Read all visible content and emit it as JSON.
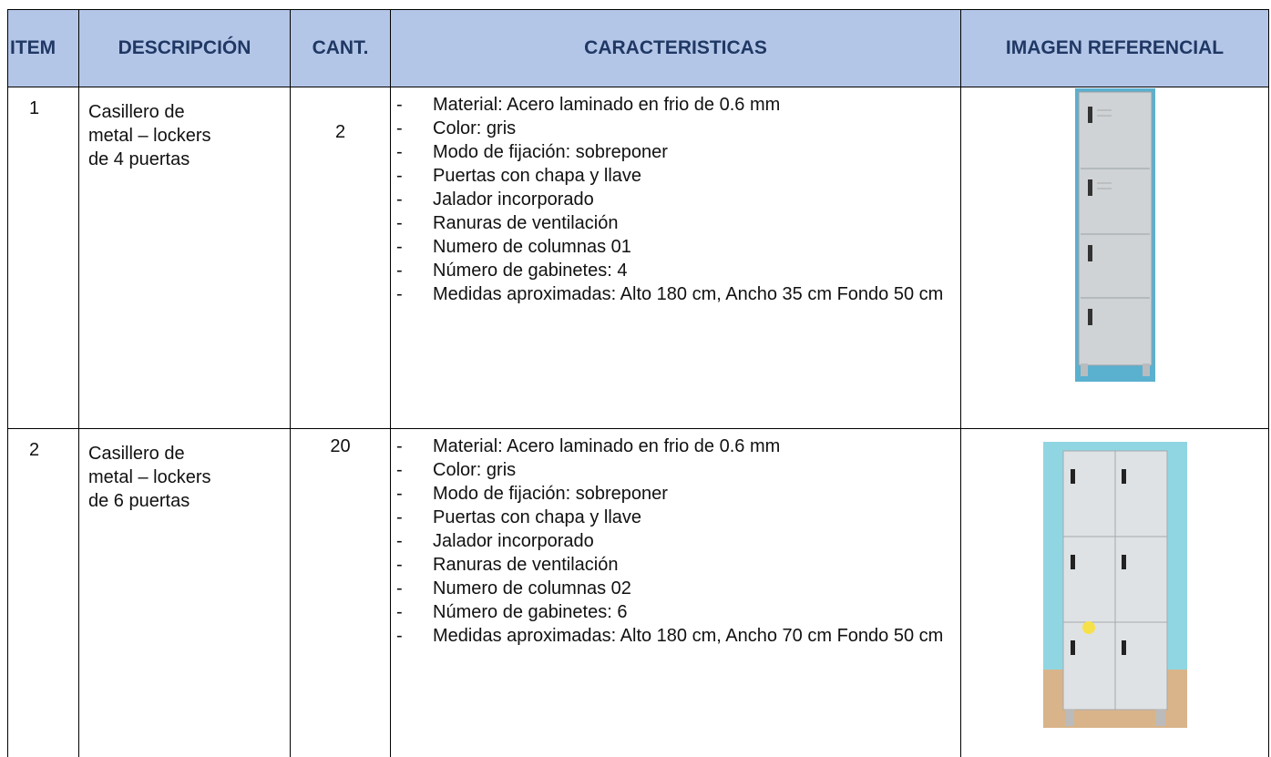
{
  "table": {
    "headers": [
      "ITEM",
      "DESCRIPCIÓN",
      "CANT.",
      "CARACTERISTICAS",
      "IMAGEN REFERENCIAL"
    ],
    "rows": [
      {
        "item": 1,
        "description": "Casillero de metal – lockers de 4 puertas",
        "quantity": 2,
        "features": [
          "Material: Acero laminado en frio de 0.6 mm",
          "Color: gris",
          "Modo de fijación: sobreponer",
          "Puertas con chapa y llave",
          "Jalador incorporado",
          "Ranuras de ventilación",
          "Numero de columnas 01",
          "Número de gabinetes: 4",
          "Medidas aproximadas: Alto 180 cm, Ancho 35 cm Fondo 50 cm"
        ]
      },
      {
        "item": 2,
        "description": "Casillero de metal – lockers de 6 puertas",
        "quantity": 20,
        "features": [
          "Material: Acero laminado en frio de 0.6 mm",
          "Color: gris",
          "Modo de fijación: sobreponer",
          "Puertas con chapa y llave",
          "Jalador incorporado",
          "Ranuras de ventilación",
          "Numero de columnas 02",
          "Número de gabinetes: 6",
          "Medidas aproximadas: Alto 180 cm, Ancho 70 cm Fondo 50 cm"
        ]
      }
    ]
  }
}
